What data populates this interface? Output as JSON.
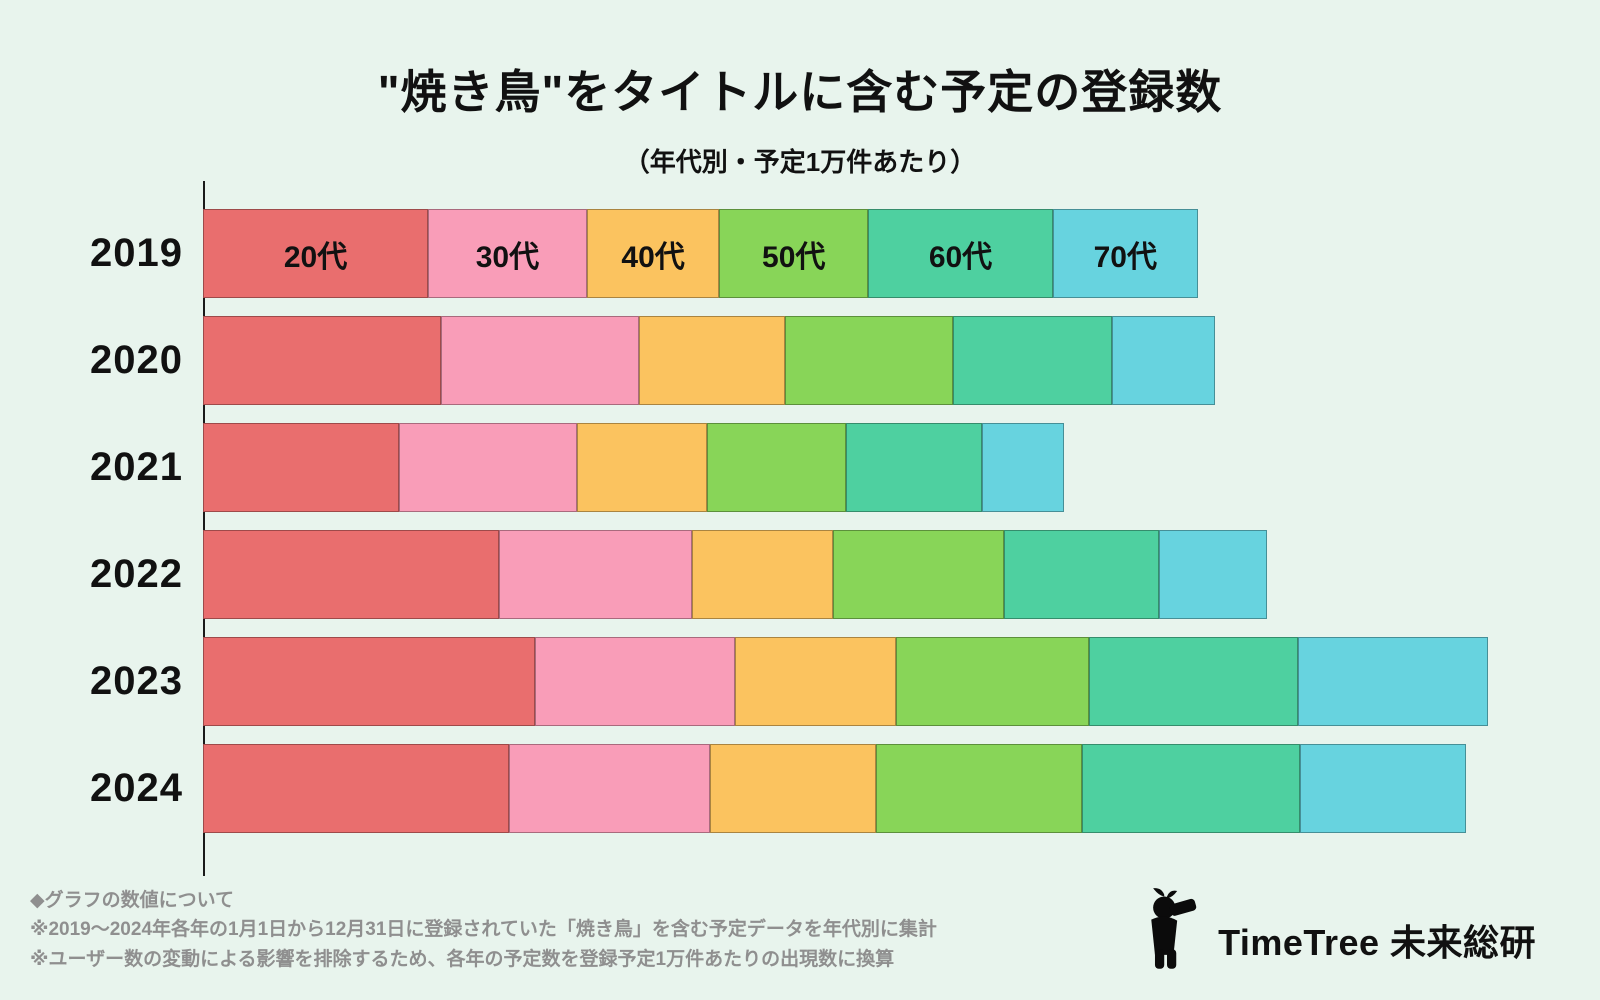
{
  "title": "\"焼き鳥\"をタイトルに含む予定の登録数",
  "subtitle": "（年代別・予定1万件あたり）",
  "chart_data": {
    "type": "bar",
    "orientation": "horizontal",
    "stacked": true,
    "categories": [
      "2019",
      "2020",
      "2021",
      "2022",
      "2023",
      "2024"
    ],
    "series_labels": [
      "20代",
      "30代",
      "40代",
      "50代",
      "60代",
      "70代"
    ],
    "colors": [
      "#e96e6e",
      "#f99db8",
      "#fbc35f",
      "#88d558",
      "#4ed0a0",
      "#67d3df"
    ],
    "values": [
      [
        22.4,
        15.8,
        13.2,
        14.8,
        18.4,
        14.4
      ],
      [
        23.7,
        19.7,
        14.5,
        16.8,
        15.8,
        10.2
      ],
      [
        19.5,
        17.7,
        13.0,
        13.8,
        13.5,
        8.2
      ],
      [
        29.5,
        19.2,
        14.0,
        17.0,
        15.5,
        10.7
      ],
      [
        33.0,
        20.0,
        16.0,
        19.2,
        20.8,
        18.9
      ],
      [
        30.5,
        20.0,
        16.5,
        20.5,
        21.7,
        16.5
      ]
    ],
    "xmax": 127.9,
    "labels_shown_on_category": "2019",
    "axis": {
      "x_ticks_visible": false,
      "grid": false
    }
  },
  "footer": {
    "line1": "◆グラフの数値について",
    "line2": "※2019～2024年各年の1月1日から12月31日に登録されていた「焼き鳥」を含む予定データを年代別に集計",
    "line3": "※ユーザー数の変動による影響を排除するため、各年の予定数を登録予定1万件あたりの出現数に換算"
  },
  "logo": {
    "icon": "observer-with-binoculars-silhouette-icon",
    "text": "TimeTree 未来総研"
  },
  "background_color": "#e8f4ed"
}
